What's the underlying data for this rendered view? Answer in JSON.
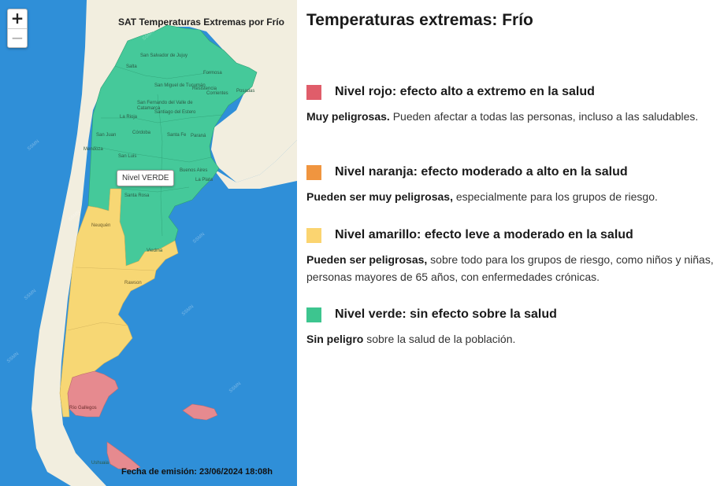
{
  "map": {
    "title": "SAT Temperaturas Extremas por Frío",
    "zoom_in": "+",
    "zoom_out": "−",
    "tooltip": "Nivel VERDE",
    "issue_date": "Fecha de emisión: 23/06/2024 18:08h",
    "colors": {
      "ocean": "#2f8fd8",
      "neighbors": "#f2eedf",
      "green": "#45c99a",
      "yellow": "#f7d774",
      "red": "#e68a8f"
    },
    "cities": [
      "San Salvador de Jujuy",
      "Salta",
      "Formosa",
      "San Miguel de Tucumán",
      "Resistencia",
      "Corrientes",
      "Posadas",
      "San Fernando del Valle de Catamarca",
      "Santiago del Estero",
      "La Rioja",
      "Córdoba",
      "Santa Fe",
      "Paraná",
      "San Juan",
      "Mendoza",
      "San Luis",
      "Buenos Aires",
      "La Plata",
      "Santa Rosa",
      "Neuquén",
      "Viedma",
      "Rawson",
      "Río Gallegos",
      "Ushuaia"
    ]
  },
  "legend": {
    "heading": "Temperaturas extremas: Frío",
    "levels": [
      {
        "color": "#e05d6a",
        "title": "Nivel rojo: efecto alto a extremo en la salud",
        "desc_bold": "Muy peligrosas.",
        "desc": " Pueden afectar a todas las personas, incluso a las saludables."
      },
      {
        "color": "#f0953f",
        "title": "Nivel naranja: efecto moderado a alto en la salud",
        "desc_bold": "Pueden ser muy peligrosas,",
        "desc": " especialmente para los grupos de riesgo."
      },
      {
        "color": "#fbd470",
        "title": "Nivel amarillo: efecto leve a moderado en la salud",
        "desc_bold": "Pueden ser peligrosas,",
        "desc": " sobre todo para los grupos de riesgo, como niños y niñas, personas mayores de 65 años, con enfermedades crónicas."
      },
      {
        "color": "#3dc58f",
        "title": "Nivel verde: sin efecto sobre la salud",
        "desc_bold": "Sin peligro",
        "desc": " sobre la salud de la población."
      }
    ]
  }
}
